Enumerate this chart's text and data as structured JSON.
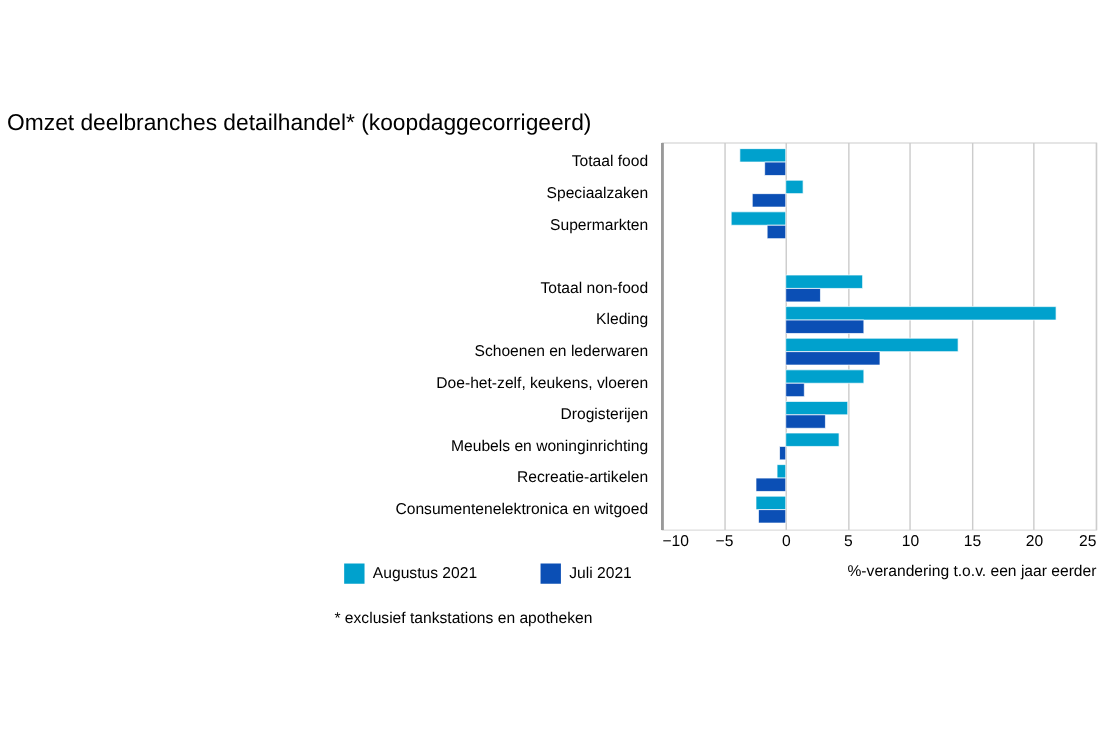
{
  "chart_data": {
    "type": "bar",
    "orientation": "horizontal",
    "title": "Omzet deelbranches detailhandel* (koopdaggecorrigeerd)",
    "categories": [
      "Totaal food",
      "Speciaalzaken",
      "Supermarkten",
      null,
      "Totaal non-food",
      "Kleding",
      "Schoenen en lederwaren",
      "Doe-het-zelf, keukens, vloeren",
      "Drogisterijen",
      "Meubels en woninginrichting",
      "Recreatie-artikelen",
      "Consumentenelektronica en witgoed"
    ],
    "series": [
      {
        "name": "Augustus 2021",
        "color": "#00a1cd",
        "values": [
          -3.7,
          1.4,
          -4.4,
          null,
          6.2,
          21.8,
          13.9,
          6.3,
          5.0,
          4.3,
          -0.7,
          -2.4
        ]
      },
      {
        "name": "Juli 2021",
        "color": "#0b4fb5",
        "values": [
          -1.7,
          -2.7,
          -1.5,
          null,
          2.8,
          6.3,
          7.6,
          1.5,
          3.2,
          -0.5,
          -2.4,
          -2.2
        ]
      }
    ],
    "xlabel": "%-verandering t.o.v. een jaar eerder",
    "xlim": [
      -10,
      25
    ],
    "xticks": [
      -10,
      -5,
      0,
      5,
      10,
      15,
      20,
      25
    ],
    "grid": "x",
    "legend": "bottom left",
    "annotations": [
      "* exclusief tankstations en apotheken"
    ]
  }
}
